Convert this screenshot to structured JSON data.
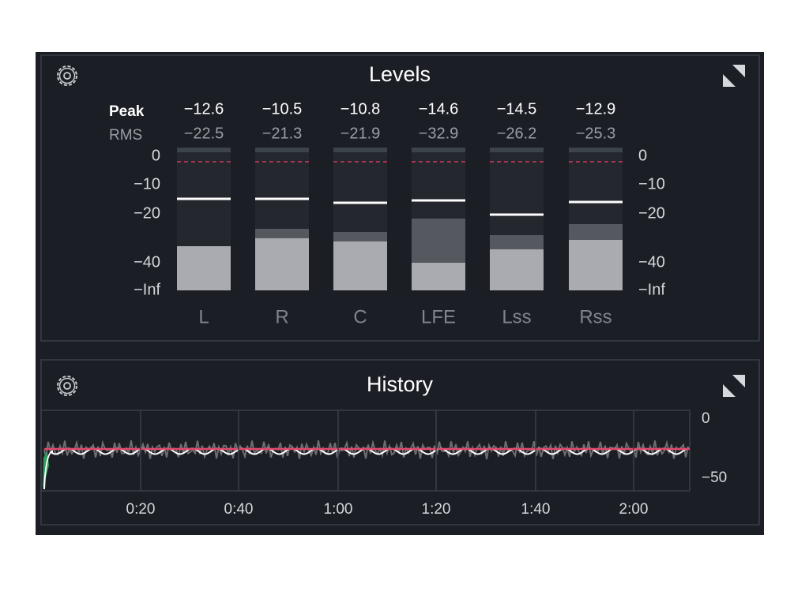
{
  "levels": {
    "title": "Levels",
    "row_labels": {
      "peak": "Peak",
      "rms": "RMS"
    },
    "channels": [
      {
        "name": "L",
        "peak": "−12.6",
        "rms": "−22.5"
      },
      {
        "name": "R",
        "peak": "−10.5",
        "rms": "−21.3"
      },
      {
        "name": "C",
        "peak": "−10.8",
        "rms": "−21.9"
      },
      {
        "name": "LFE",
        "peak": "−14.6",
        "rms": "−32.9"
      },
      {
        "name": "Lss",
        "peak": "−14.5",
        "rms": "−26.2"
      },
      {
        "name": "Rss",
        "peak": "−12.9",
        "rms": "−25.3"
      }
    ],
    "scale": [
      "0",
      "−10",
      "−20",
      "−40",
      "−Inf"
    ]
  },
  "history": {
    "title": "History",
    "y_labels": [
      "0",
      "−50"
    ],
    "time_labels": [
      "0:20",
      "0:40",
      "1:00",
      "1:20",
      "1:40",
      "2:00"
    ]
  }
}
